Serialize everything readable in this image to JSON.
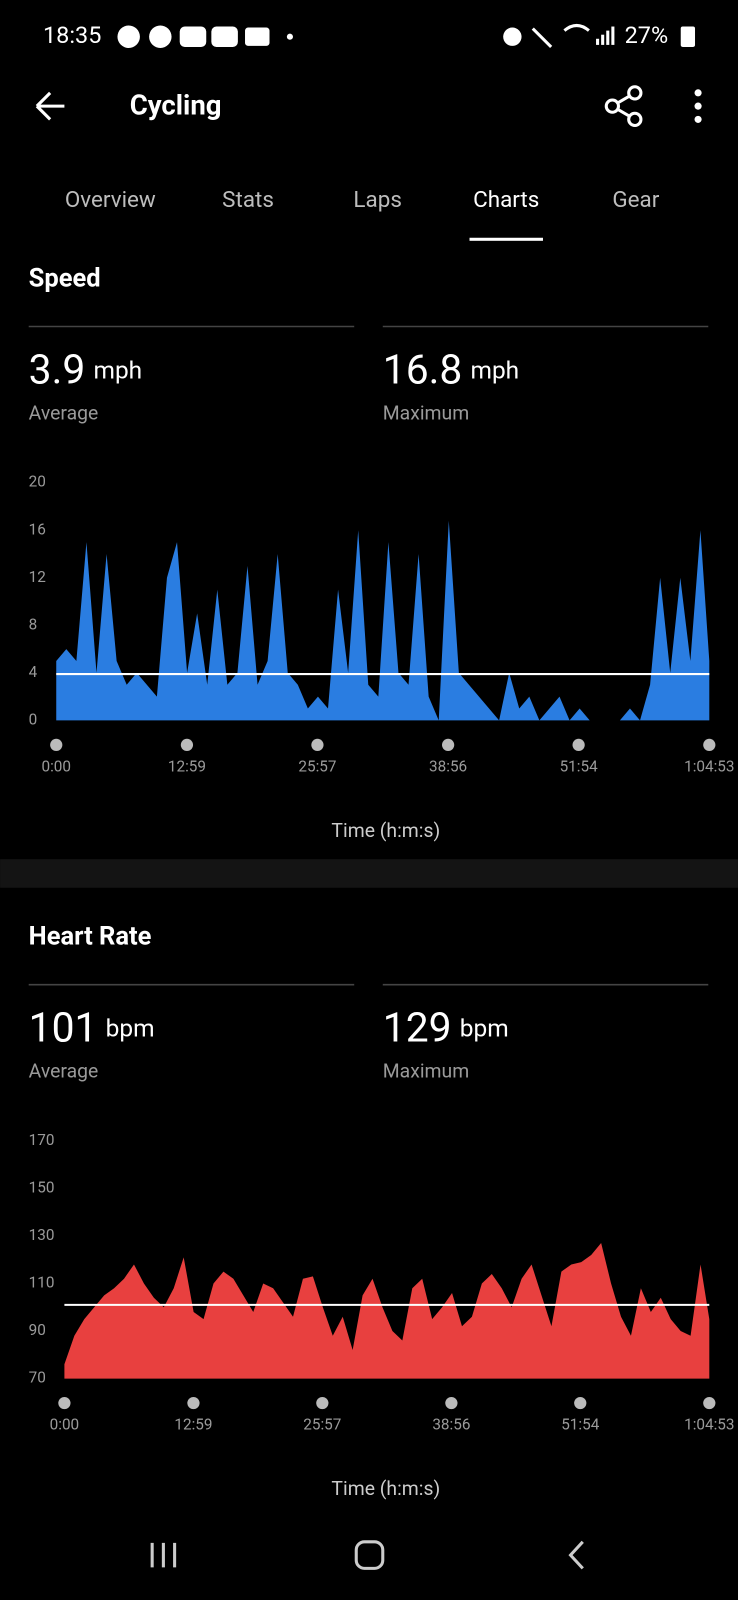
{
  "status_bar": {
    "time": "18:35",
    "battery": "27%"
  },
  "header": {
    "title": "Cycling"
  },
  "tabs": {
    "items": [
      "Overview",
      "Stats",
      "Laps",
      "Charts",
      "Gear"
    ],
    "selected": 3
  },
  "chart_data": [
    {
      "type": "area",
      "title": "Speed",
      "color": "#2a7de1",
      "stats": [
        {
          "value": 3.9,
          "unit": "mph",
          "label": "Average"
        },
        {
          "value": 16.8,
          "unit": "mph",
          "label": "Maximum"
        }
      ],
      "xlabel": "Time (h:m:s)",
      "x": [
        0,
        60,
        120,
        180,
        240,
        300,
        360,
        420,
        480,
        540,
        600,
        660,
        720,
        780,
        840,
        900,
        960,
        1020,
        1080,
        1140,
        1200,
        1260,
        1320,
        1380,
        1440,
        1500,
        1560,
        1620,
        1680,
        1740,
        1800,
        1860,
        1920,
        1980,
        2040,
        2100,
        2160,
        2220,
        2280,
        2340,
        2400,
        2460,
        2520,
        2580,
        2640,
        2700,
        2760,
        2820,
        2880,
        2940,
        3000,
        3060,
        3120,
        3180,
        3240,
        3300,
        3360,
        3420,
        3480,
        3540,
        3600,
        3660,
        3720,
        3780,
        3840,
        3893
      ],
      "values": [
        5,
        6,
        5,
        15,
        4,
        14,
        5,
        3,
        4,
        3,
        2,
        12,
        15,
        4,
        9,
        3,
        11,
        3,
        4,
        13,
        3,
        5,
        14,
        4,
        3,
        1,
        2,
        1,
        11,
        4,
        16,
        3,
        2,
        15,
        4,
        3,
        14,
        2,
        0,
        16.8,
        4,
        3,
        2,
        1,
        0,
        4,
        1,
        2,
        0,
        1,
        2,
        0,
        1,
        0,
        0,
        0,
        0,
        1,
        0,
        3,
        12,
        4,
        12,
        5,
        16,
        5
      ],
      "xlim": [
        0,
        3893
      ],
      "ylim": [
        0,
        20
      ],
      "yticks": [
        0,
        4,
        8,
        12,
        16,
        20
      ],
      "xticks": [
        {
          "value": 0,
          "label": "0:00"
        },
        {
          "value": 779,
          "label": "12:59"
        },
        {
          "value": 1557,
          "label": "25:57"
        },
        {
          "value": 2336,
          "label": "38:56"
        },
        {
          "value": 3114,
          "label": "51:54"
        },
        {
          "value": 3893,
          "label": "1:04:53"
        }
      ]
    },
    {
      "type": "area",
      "title": "Heart Rate",
      "color": "#e8403f",
      "stats": [
        {
          "value": 101,
          "unit": "bpm",
          "label": "Average"
        },
        {
          "value": 129,
          "unit": "bpm",
          "label": "Maximum"
        }
      ],
      "xlabel": "Time (h:m:s)",
      "x": [
        0,
        60,
        120,
        180,
        240,
        300,
        360,
        420,
        480,
        540,
        600,
        660,
        720,
        780,
        840,
        900,
        960,
        1020,
        1080,
        1140,
        1200,
        1260,
        1320,
        1380,
        1440,
        1500,
        1560,
        1620,
        1680,
        1740,
        1800,
        1860,
        1920,
        1980,
        2040,
        2100,
        2160,
        2220,
        2280,
        2340,
        2400,
        2460,
        2520,
        2580,
        2640,
        2700,
        2760,
        2820,
        2880,
        2940,
        3000,
        3060,
        3120,
        3180,
        3240,
        3300,
        3360,
        3420,
        3480,
        3540,
        3600,
        3660,
        3720,
        3780,
        3840,
        3893
      ],
      "values": [
        76,
        88,
        95,
        100,
        105,
        108,
        112,
        118,
        110,
        104,
        100,
        108,
        121,
        98,
        95,
        110,
        115,
        112,
        105,
        98,
        110,
        108,
        102,
        96,
        112,
        113,
        100,
        88,
        96,
        82,
        105,
        112,
        100,
        90,
        86,
        108,
        112,
        95,
        100,
        106,
        92,
        96,
        110,
        114,
        108,
        100,
        112,
        118,
        105,
        92,
        115,
        118,
        119,
        122,
        127,
        110,
        96,
        88,
        108,
        98,
        104,
        95,
        90,
        88,
        118,
        95
      ],
      "xlim": [
        0,
        3893
      ],
      "ylim": [
        70,
        170
      ],
      "yticks": [
        70,
        90,
        110,
        130,
        150,
        170
      ],
      "xticks": [
        {
          "value": 0,
          "label": "0:00"
        },
        {
          "value": 779,
          "label": "12:59"
        },
        {
          "value": 1557,
          "label": "25:57"
        },
        {
          "value": 2336,
          "label": "38:56"
        },
        {
          "value": 3114,
          "label": "51:54"
        },
        {
          "value": 3893,
          "label": "1:04:53"
        }
      ]
    }
  ]
}
